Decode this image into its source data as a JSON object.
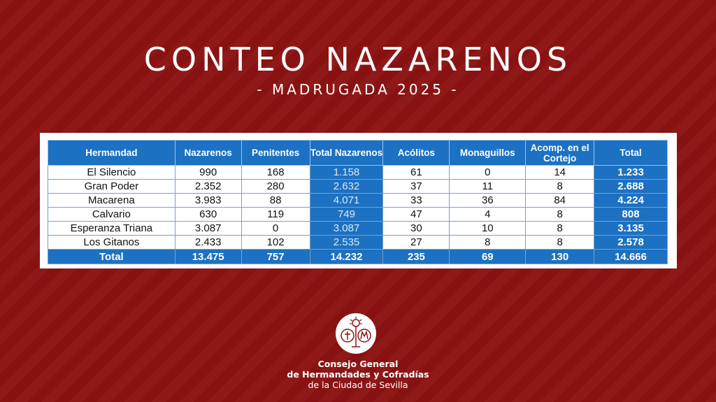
{
  "title": "CONTEO NAZARENOS",
  "subtitle": "- MADRUGADA 2025 -",
  "table": {
    "headers": [
      "Hermandad",
      "Nazarenos",
      "Penitentes",
      "Total Nazarenos",
      "Acólitos",
      "Monaguillos",
      "Acomp. en el Cortejo",
      "Total"
    ],
    "rows": [
      [
        "El Silencio",
        "990",
        "168",
        "1.158",
        "61",
        "0",
        "14",
        "1.233"
      ],
      [
        "Gran Poder",
        "2.352",
        "280",
        "2.632",
        "37",
        "11",
        "8",
        "2.688"
      ],
      [
        "Macarena",
        "3.983",
        "88",
        "4.071",
        "33",
        "36",
        "84",
        "4.224"
      ],
      [
        "Calvario",
        "630",
        "119",
        "749",
        "47",
        "4",
        "8",
        "808"
      ],
      [
        "Esperanza Triana",
        "3.087",
        "0",
        "3.087",
        "30",
        "10",
        "8",
        "3.135"
      ],
      [
        "Los Gitanos",
        "2.433",
        "102",
        "2.535",
        "27",
        "8",
        "8",
        "2.578"
      ]
    ],
    "total": [
      "Total",
      "13.475",
      "757",
      "14.232",
      "235",
      "69",
      "130",
      "14.666"
    ]
  },
  "footer": {
    "line1": "Consejo General",
    "line2": "de Hermandades y Cofradías",
    "line3": "de la Ciudad de Sevilla"
  },
  "colors": {
    "background": "#8c1313",
    "table_header": "#1c71c2"
  }
}
